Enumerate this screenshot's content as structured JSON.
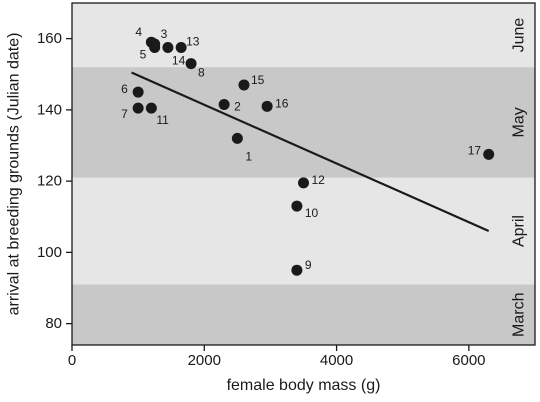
{
  "chart_data": {
    "type": "scatter",
    "title": "",
    "xlabel": "female body mass (g)",
    "ylabel": "arrival at breeding grounds (Julian date)",
    "xlim": [
      0,
      7000
    ],
    "ylim": [
      74,
      170
    ],
    "xticks": [
      0,
      2000,
      4000,
      6000
    ],
    "xtick_labels": [
      "0",
      "2000",
      "4000",
      "6000"
    ],
    "yticks": [
      80,
      100,
      120,
      140,
      160
    ],
    "ytick_labels": [
      "80",
      "100",
      "120",
      "140",
      "160"
    ],
    "grid": false,
    "legend": "none",
    "bands": [
      {
        "label": "March",
        "from": 74,
        "to": 91,
        "color": "#c8c8c8"
      },
      {
        "label": "April",
        "from": 91,
        "to": 121,
        "color": "#e6e6e6"
      },
      {
        "label": "May",
        "from": 121,
        "to": 152,
        "color": "#c8c8c8"
      },
      {
        "label": "June",
        "from": 152,
        "to": 170,
        "color": "#e6e6e6"
      }
    ],
    "points": [
      {
        "label": "1",
        "x": 2500,
        "y": 132
      },
      {
        "label": "2",
        "x": 2300,
        "y": 141.5
      },
      {
        "label": "3",
        "x": 1250,
        "y": 158.5
      },
      {
        "label": "4",
        "x": 1200,
        "y": 159
      },
      {
        "label": "5",
        "x": 1250,
        "y": 157.5
      },
      {
        "label": "6",
        "x": 1000,
        "y": 145
      },
      {
        "label": "7",
        "x": 1000,
        "y": 140.5
      },
      {
        "label": "8",
        "x": 1800,
        "y": 153
      },
      {
        "label": "9",
        "x": 3400,
        "y": 95
      },
      {
        "label": "10",
        "x": 3400,
        "y": 113
      },
      {
        "label": "11",
        "x": 1200,
        "y": 140.5
      },
      {
        "label": "12",
        "x": 3500,
        "y": 119.5
      },
      {
        "label": "13",
        "x": 1650,
        "y": 157.5
      },
      {
        "label": "14",
        "x": 1450,
        "y": 157.5
      },
      {
        "label": "15",
        "x": 2600,
        "y": 147
      },
      {
        "label": "16",
        "x": 2950,
        "y": 141
      },
      {
        "label": "17",
        "x": 6300,
        "y": 127.5
      }
    ],
    "trend_line": {
      "x": [
        900,
        6300
      ],
      "y": [
        150.5,
        106
      ]
    }
  },
  "colors": {
    "point": "#1a1a1a",
    "line": "#1a1a1a",
    "axis": "#1a1a1a"
  }
}
